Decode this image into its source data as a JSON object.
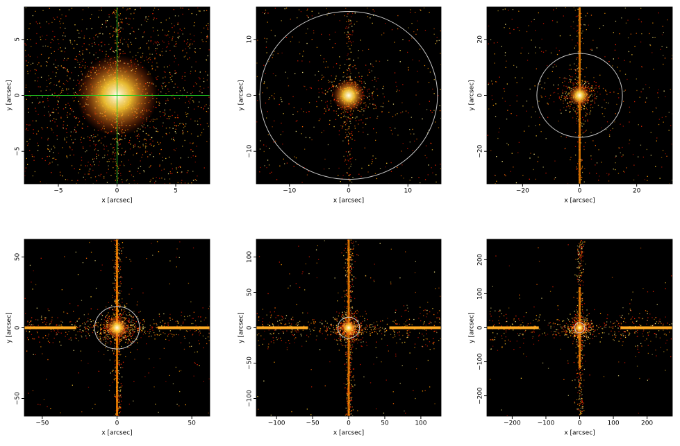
{
  "chart_data": [
    {
      "type": "image",
      "xlabel": "x [arcsec]",
      "ylabel": "y [arcsec]",
      "xlim": [
        -7.9,
        7.9
      ],
      "ylim": [
        -7.9,
        7.9
      ],
      "xticks": [
        {
          "value": -5,
          "label": "−5"
        },
        0,
        5
      ],
      "yticks": [
        {
          "value": -5,
          "label": "−5"
        },
        0,
        5
      ],
      "crosshair": {
        "x": 0,
        "y": 0,
        "color": "#22cc22"
      }
    },
    {
      "type": "image",
      "xlabel": "x [arcsec]",
      "ylabel": "y [arcsec]",
      "xlim": [
        -15.6,
        15.6
      ],
      "ylim": [
        -15.8,
        15.8
      ],
      "xticks": [
        {
          "value": -10,
          "label": "−10"
        },
        0,
        10
      ],
      "yticks": [
        {
          "value": -10,
          "label": "−10"
        },
        0,
        10
      ],
      "circle": {
        "radius": 15,
        "color": "#c8c8c8"
      }
    },
    {
      "type": "image",
      "xlabel": "x [arcsec]",
      "ylabel": "y [arcsec]",
      "xlim": [
        -32.5,
        32.5
      ],
      "ylim": [
        -31.6,
        31.6
      ],
      "xticks": [
        {
          "value": -20,
          "label": "−20"
        },
        0,
        20
      ],
      "yticks": [
        {
          "value": -20,
          "label": "−20"
        },
        0,
        20
      ],
      "circle": {
        "radius": 15,
        "color": "#c8c8c8"
      }
    },
    {
      "type": "image",
      "xlabel": "x [arcsec]",
      "ylabel": "y [arcsec]",
      "xlim": [
        -62,
        62
      ],
      "ylim": [
        -62.5,
        62.5
      ],
      "xticks": [
        {
          "value": -50,
          "label": "−50"
        },
        0,
        50
      ],
      "yticks": [
        {
          "value": -50,
          "label": "−50"
        },
        0,
        50
      ],
      "circle": {
        "radius": 15,
        "color": "#c8c8c8"
      }
    },
    {
      "type": "image",
      "xlabel": "x [arcsec]",
      "ylabel": "y [arcsec]",
      "xlim": [
        -128,
        128
      ],
      "ylim": [
        -125,
        125
      ],
      "xticks": [
        {
          "value": -100,
          "label": "−100"
        },
        {
          "value": -50,
          "label": "−50"
        },
        0,
        50,
        100
      ],
      "yticks": [
        {
          "value": -100,
          "label": "−100"
        },
        {
          "value": -50,
          "label": "−50"
        },
        0,
        50,
        100
      ],
      "circle": {
        "radius": 15,
        "color": "#c8c8c8"
      }
    },
    {
      "type": "image",
      "xlabel": "x [arcsec]",
      "ylabel": "y [arcsec]",
      "xlim": [
        -275,
        275
      ],
      "ylim": [
        -260,
        260
      ],
      "xticks": [
        {
          "value": -200,
          "label": "−200"
        },
        {
          "value": -100,
          "label": "−100"
        },
        0,
        100,
        200
      ],
      "yticks": [
        {
          "value": -200,
          "label": "−200"
        },
        {
          "value": -100,
          "label": "−100"
        },
        0,
        100,
        200
      ],
      "circle": {
        "radius": 15,
        "color": "#c8c8c8"
      }
    }
  ]
}
